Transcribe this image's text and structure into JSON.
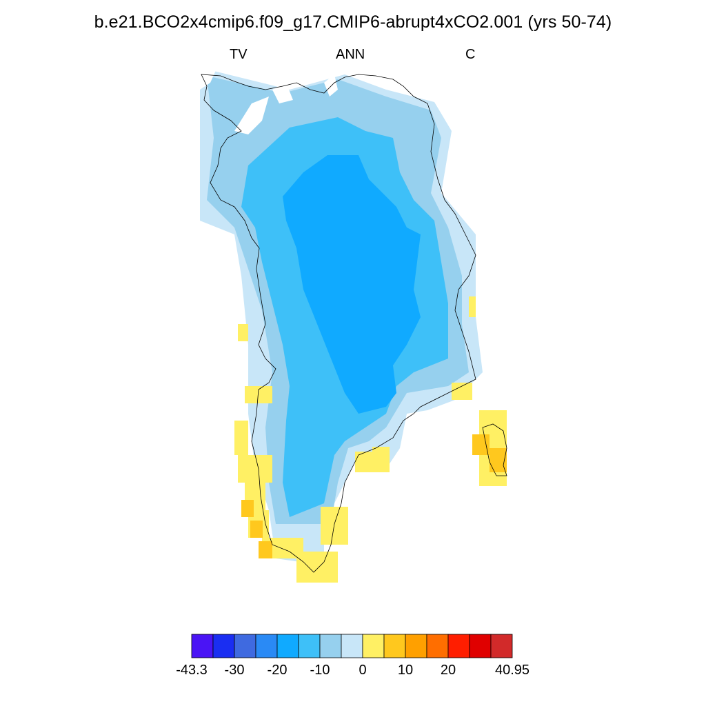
{
  "title": "b.e21.BCO2x4cmip6.f09_g17.CMIP6-abrupt4xCO2.001 (yrs 50-74)",
  "subtitle": {
    "left": "TV",
    "center": "ANN",
    "right": "C"
  },
  "colorbar": {
    "colors": [
      "#4a14f5",
      "#1a2ef2",
      "#3f6ae0",
      "#2a8af5",
      "#10aaff",
      "#3ec0f8",
      "#96d0ee",
      "#c8e6f8",
      "#fff064",
      "#ffc81e",
      "#ffa000",
      "#ff6e00",
      "#ff1e00",
      "#e00000",
      "#d22a2a"
    ],
    "tick_labels": [
      "-43.3",
      "-30",
      "-20",
      "-10",
      "0",
      "10",
      "20",
      "40.95"
    ],
    "tick_label_boundaries": [
      0,
      2,
      4,
      6,
      8,
      10,
      12,
      15
    ]
  },
  "legend_levels": {
    "light_blue": "#c8e6f8",
    "mid_blue": "#96d0ee",
    "sky_blue": "#3ec0f8",
    "deep_blue": "#10aaff",
    "yellow": "#fff064",
    "gold": "#ffc81e"
  }
}
